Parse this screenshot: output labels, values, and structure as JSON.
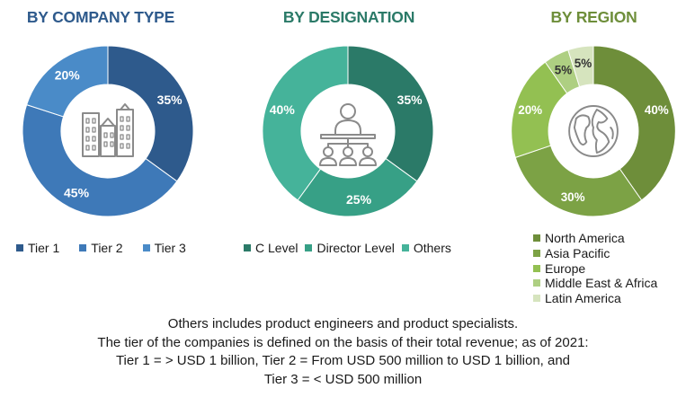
{
  "colors": {
    "tier1": "#2E5A8C",
    "tier2": "#3E79B8",
    "tier3": "#4A8BC8",
    "c_level": "#2B7A68",
    "director": "#37A086",
    "others": "#45B39A",
    "north_america": "#6E8E3A",
    "asia_pacific": "#7CA245",
    "europe": "#93C052",
    "mea": "#AECF82",
    "latin_america": "#D6E4BE"
  },
  "chart_data": [
    {
      "type": "pie",
      "title": "BY COMPANY TYPE",
      "title_color": "#2E5A8C",
      "icon": "buildings-icon",
      "slices": [
        {
          "name": "Tier 1",
          "value": 35,
          "label": "35%",
          "color": "#2E5A8C"
        },
        {
          "name": "Tier 2",
          "value": 45,
          "label": "45%",
          "color": "#3E79B8"
        },
        {
          "name": "Tier 3",
          "value": 20,
          "label": "20%",
          "color": "#4A8BC8"
        }
      ]
    },
    {
      "type": "pie",
      "title": "BY DESIGNATION",
      "title_color": "#2B7A68",
      "icon": "meeting-icon",
      "slices": [
        {
          "name": "C Level",
          "value": 35,
          "label": "35%",
          "color": "#2B7A68"
        },
        {
          "name": "Director Level",
          "value": 25,
          "label": "25%",
          "color": "#37A086"
        },
        {
          "name": "Others",
          "value": 40,
          "label": "40%",
          "color": "#45B39A"
        }
      ]
    },
    {
      "type": "pie",
      "title": "BY REGION",
      "title_color": "#6E8E3A",
      "icon": "globe-icon",
      "slices": [
        {
          "name": "North America",
          "value": 40,
          "label": "40%",
          "color": "#6E8E3A"
        },
        {
          "name": "Asia Pacific",
          "value": 30,
          "label": "30%",
          "color": "#7CA245"
        },
        {
          "name": "Europe",
          "value": 20,
          "label": "20%",
          "color": "#93C052"
        },
        {
          "name": "Middle East & Africa",
          "value": 5,
          "label": "5%",
          "color": "#AECF82"
        },
        {
          "name": "Latin America",
          "value": 5,
          "label": "5%",
          "color": "#D6E4BE"
        }
      ]
    }
  ],
  "notes": [
    "Others includes product engineers and product specialists.",
    "The tier of the companies is defined on the basis of their total revenue; as of 2021:",
    "Tier 1 = > USD 1 billion, Tier 2 = From USD 500 million to USD 1 billion, and",
    "Tier 3 = < USD 500 million"
  ]
}
